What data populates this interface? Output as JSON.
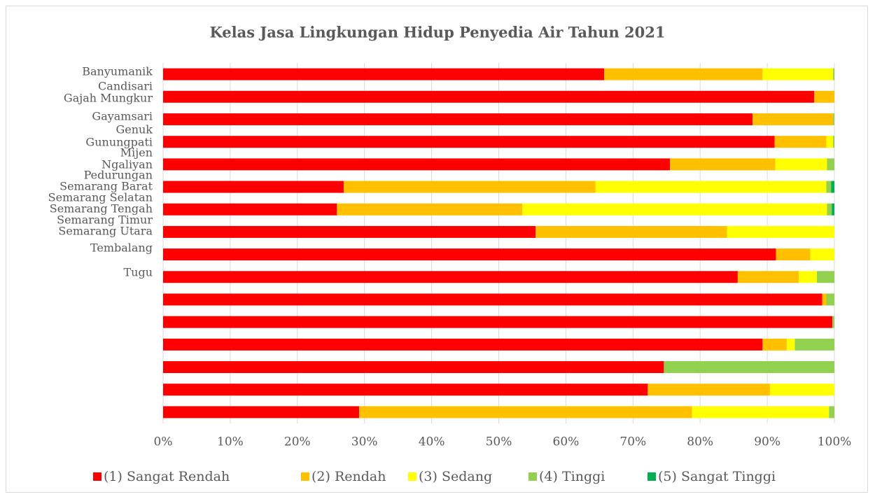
{
  "chart_data": {
    "type": "stacked_barh",
    "title": "Kelas Jasa Lingkungan Hidup Penyedia Air Tahun 2021",
    "categories": [
      "Banyumanik",
      "Candisari",
      "Gajah Mungkur",
      "Gayamsari",
      "Genuk",
      "Gunungpati",
      "Mijen",
      "Ngaliyan",
      "Pedurungan",
      "Semarang Barat",
      "Semarang Selatan",
      "Semarang Tengah",
      "Semarang Timur",
      "Semarang Utara",
      "Tembalang",
      "Tugu"
    ],
    "series": [
      {
        "name": "(1) Sangat Rendah",
        "color": "#ff0000",
        "values": [
          65.7,
          97.0,
          87.8,
          91.1,
          75.5,
          26.9,
          25.9,
          55.5,
          91.3,
          85.6,
          98.2,
          99.7,
          89.3,
          74.6,
          72.2,
          29.2
        ]
      },
      {
        "name": "(2) Rendah",
        "color": "#ffc000",
        "values": [
          23.6,
          3.0,
          12.0,
          7.7,
          15.7,
          37.5,
          27.6,
          28.5,
          5.1,
          9.1,
          0.6,
          0,
          3.6,
          0,
          18.2,
          49.6
        ]
      },
      {
        "name": "(3) Sedang",
        "color": "#ffff00",
        "values": [
          10.5,
          0,
          0,
          1.0,
          7.7,
          34.4,
          45.4,
          16.0,
          3.6,
          2.7,
          0,
          0,
          1.2,
          0,
          9.6,
          20.4
        ]
      },
      {
        "name": "(4) Tinggi",
        "color": "#92d050",
        "values": [
          0.2,
          0,
          0.2,
          0.2,
          1.1,
          0.7,
          0.7,
          0,
          0,
          2.6,
          1.2,
          0.3,
          5.9,
          25.4,
          0,
          0.8
        ]
      },
      {
        "name": "(5) Sangat Tinggi",
        "color": "#00b050",
        "values": [
          0,
          0,
          0,
          0,
          0,
          0.5,
          0.4,
          0,
          0,
          0,
          0,
          0,
          0,
          0,
          0,
          0
        ]
      }
    ],
    "xlim": [
      0,
      100
    ],
    "xticks": [
      {
        "value": 0,
        "label": "0%"
      },
      {
        "value": 10,
        "label": "10%"
      },
      {
        "value": 20,
        "label": "20%"
      },
      {
        "value": 30,
        "label": "30%"
      },
      {
        "value": 40,
        "label": "40%"
      },
      {
        "value": 50,
        "label": "50%"
      },
      {
        "value": 60,
        "label": "60%"
      },
      {
        "value": 70,
        "label": "70%"
      },
      {
        "value": 80,
        "label": "80%"
      },
      {
        "value": 90,
        "label": "90%"
      },
      {
        "value": 100,
        "label": "100%"
      }
    ],
    "grid": true,
    "legend": "bottom"
  }
}
